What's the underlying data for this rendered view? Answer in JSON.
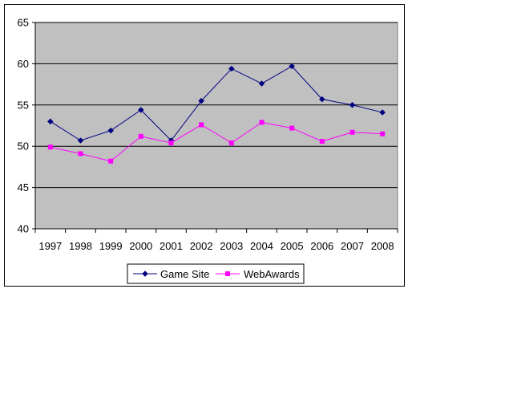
{
  "chart_data": {
    "type": "line",
    "title": "",
    "xlabel": "",
    "ylabel": "",
    "categories": [
      "1997",
      "1998",
      "1999",
      "2000",
      "2001",
      "2002",
      "2003",
      "2004",
      "2005",
      "2006",
      "2007",
      "2008"
    ],
    "ylim": [
      40,
      65
    ],
    "yticks": [
      40,
      45,
      50,
      55,
      60,
      65
    ],
    "grid": true,
    "legend_position": "bottom",
    "plot_background": "#c0c0c0",
    "series": [
      {
        "name": "Game Site",
        "color": "#000080",
        "marker": "diamond",
        "values": [
          53.0,
          50.7,
          51.9,
          54.4,
          50.7,
          55.5,
          59.4,
          57.6,
          59.7,
          55.7,
          55.0,
          54.1
        ]
      },
      {
        "name": "WebAwards",
        "color": "#ff00ff",
        "marker": "square",
        "values": [
          49.9,
          49.1,
          48.2,
          51.2,
          50.4,
          52.6,
          50.4,
          52.9,
          52.2,
          50.6,
          51.7,
          51.5
        ]
      }
    ]
  }
}
